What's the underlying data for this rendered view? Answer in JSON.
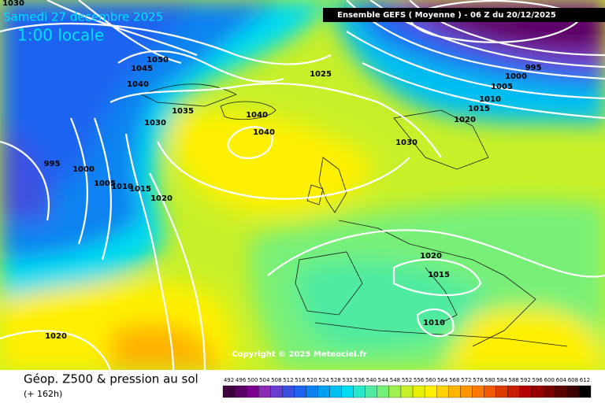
{
  "header": {
    "date": "Samedi 27 decembre 2025",
    "time": "1:00 locale",
    "model": "Ensemble GEFS  ( Moyenne )  -  06 Z du 20/12/2025"
  },
  "isobar_labels": [
    1030,
    1050,
    1045,
    1040,
    1035,
    1030,
    1040,
    1040,
    1025,
    995,
    1000,
    1005,
    1010,
    1015,
    1020,
    1030,
    995,
    1000,
    1005,
    1010,
    1015,
    1020,
    1020,
    1015,
    1010,
    1020
  ],
  "copyright": "Copyright © 2025 Meteociel.fr",
  "footer": {
    "title": "Géop. Z500 & pression au sol",
    "lead": "(+ 162h)"
  },
  "scale": {
    "values": [
      492,
      496,
      500,
      504,
      508,
      512,
      516,
      520,
      524,
      528,
      532,
      536,
      540,
      544,
      548,
      552,
      556,
      560,
      564,
      568,
      572,
      576,
      580,
      584,
      588,
      592,
      596,
      600,
      604,
      608,
      612
    ],
    "colors": [
      "#3c003c",
      "#5a0064",
      "#7a0090",
      "#8c2cb4",
      "#6a3cd0",
      "#3c50e0",
      "#1e64f0",
      "#0a82f0",
      "#00a0f0",
      "#00c0f0",
      "#00dcf0",
      "#28e6c8",
      "#50eba0",
      "#78f078",
      "#a0f050",
      "#c8f028",
      "#e6f000",
      "#fff000",
      "#ffd200",
      "#ffb400",
      "#ff9600",
      "#ff7800",
      "#f05a00",
      "#dc3c00",
      "#c81e00",
      "#b40000",
      "#960000",
      "#780000",
      "#5a0000",
      "#3c0000",
      "#000000"
    ]
  }
}
